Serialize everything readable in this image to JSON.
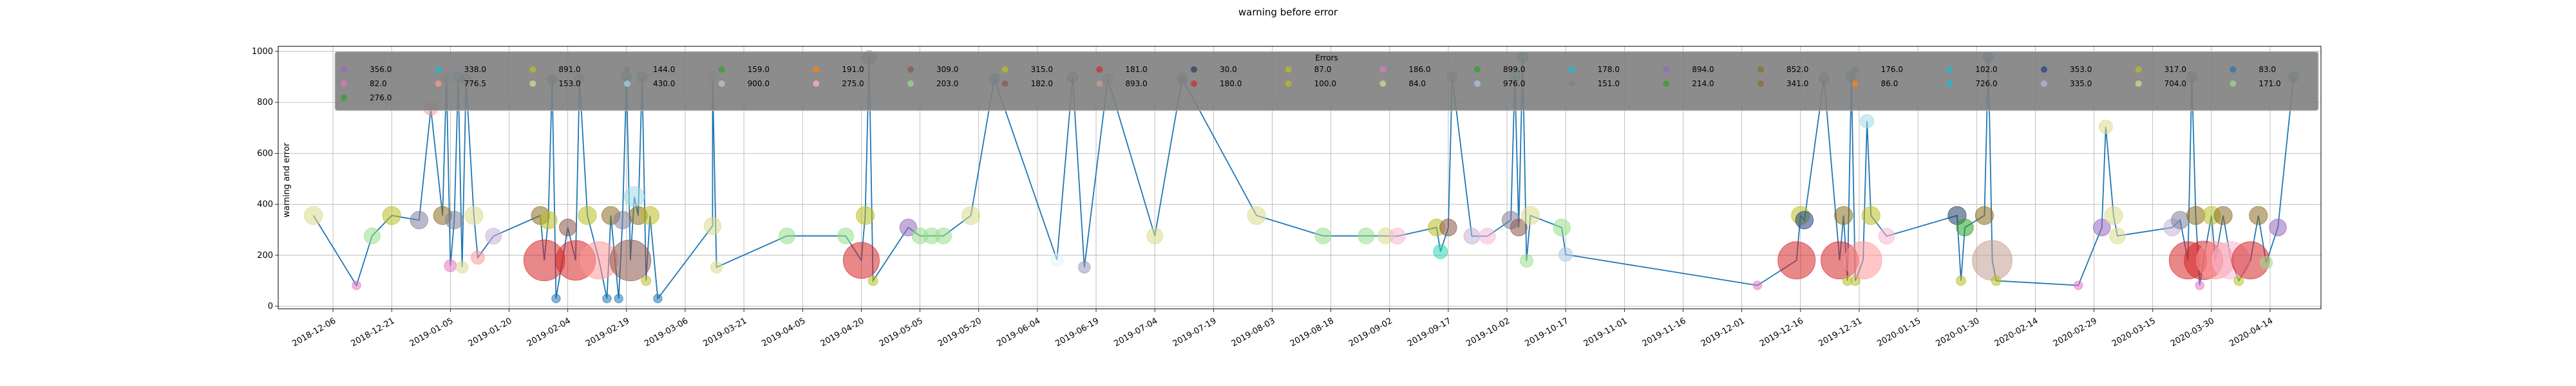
{
  "chart_data": {
    "type": "scatter",
    "title": "warning before error",
    "xlabel": "",
    "ylabel": "warning and error",
    "xlim": [
      "2018-11-22",
      "2020-04-27"
    ],
    "ylim": [
      -10,
      1020
    ],
    "grid": true,
    "y_ticks": [
      0,
      200,
      400,
      600,
      800,
      1000
    ],
    "x_ticks": [
      "2018-12-06",
      "2018-12-21",
      "2019-01-05",
      "2019-01-20",
      "2019-02-04",
      "2019-02-19",
      "2019-03-06",
      "2019-03-21",
      "2019-04-05",
      "2019-04-20",
      "2019-05-05",
      "2019-05-20",
      "2019-06-04",
      "2019-06-19",
      "2019-07-04",
      "2019-07-19",
      "2019-08-03",
      "2019-08-18",
      "2019-09-02",
      "2019-09-17",
      "2019-10-02",
      "2019-10-17",
      "2019-11-01",
      "2019-11-16",
      "2019-12-01",
      "2019-12-16",
      "2019-12-31",
      "2020-01-15",
      "2020-01-30",
      "2020-02-14",
      "2020-02-29",
      "2020-03-15",
      "2020-03-30",
      "2020-04-14"
    ],
    "line_color": "#1f77b4",
    "legend": {
      "title": "Errors",
      "placement": "upper-center",
      "entries": [
        {
          "label": "356.0",
          "color": "#9467bd"
        },
        {
          "label": "338.0",
          "color": "#17becf"
        },
        {
          "label": "891.0",
          "color": "#bcbd22"
        },
        {
          "label": "144.0",
          "color": "#7f7f7f"
        },
        {
          "label": "159.0",
          "color": "#2ca02c"
        },
        {
          "label": "191.0",
          "color": "#ff7f0e"
        },
        {
          "label": "309.0",
          "color": "#8c564b"
        },
        {
          "label": "315.0",
          "color": "#bcbd22"
        },
        {
          "label": "181.0",
          "color": "#d62728"
        },
        {
          "label": "30.0",
          "color": "#1f3f5f"
        },
        {
          "label": "87.0",
          "color": "#bcbd22"
        },
        {
          "label": "186.0",
          "color": "#e377c2"
        },
        {
          "label": "899.0",
          "color": "#2ca02c"
        },
        {
          "label": "178.0",
          "color": "#17becf"
        },
        {
          "label": "894.0",
          "color": "#9467bd"
        },
        {
          "label": "852.0",
          "color": "#8c6d1f"
        },
        {
          "label": "176.0",
          "color": "#7f7f7f"
        },
        {
          "label": "102.0",
          "color": "#17becf"
        },
        {
          "label": "353.0",
          "color": "#1f3f7f"
        },
        {
          "label": "317.0",
          "color": "#bcbd22"
        },
        {
          "label": "83.0",
          "color": "#1f77b4"
        },
        {
          "label": "82.0",
          "color": "#e377c2"
        },
        {
          "label": "776.5",
          "color": "#ff9896"
        },
        {
          "label": "153.0",
          "color": "#dbdb8d"
        },
        {
          "label": "430.0",
          "color": "#9edae5"
        },
        {
          "label": "900.0",
          "color": "#c7c7c7"
        },
        {
          "label": "275.0",
          "color": "#f7b6d2"
        },
        {
          "label": "203.0",
          "color": "#98df8a"
        },
        {
          "label": "182.0",
          "color": "#8c564b"
        },
        {
          "label": "893.0",
          "color": "#c49c94"
        },
        {
          "label": "180.0",
          "color": "#d62728"
        },
        {
          "label": "100.0",
          "color": "#bcbd22"
        },
        {
          "label": "84.0",
          "color": "#dbdb8d"
        },
        {
          "label": "976.0",
          "color": "#aec7e8"
        },
        {
          "label": "151.0",
          "color": "#7f7f7f"
        },
        {
          "label": "214.0",
          "color": "#2ca02c"
        },
        {
          "label": "341.0",
          "color": "#8c6d31"
        },
        {
          "label": "86.0",
          "color": "#ff7f0e"
        },
        {
          "label": "726.0",
          "color": "#17becf"
        },
        {
          "label": "335.0",
          "color": "#c5b0d5"
        },
        {
          "label": "704.0",
          "color": "#dbdb8d"
        },
        {
          "label": "171.0",
          "color": "#98df8a"
        },
        {
          "label": "276.0",
          "color": "#2ca02c"
        }
      ]
    },
    "series": [
      {
        "x": "2018-12-01",
        "y": 356,
        "size": 356,
        "color": "#dbdb8d"
      },
      {
        "x": "2018-12-12",
        "y": 82,
        "size": 82,
        "color": "#e377c2"
      },
      {
        "x": "2018-12-16",
        "y": 276,
        "size": 276,
        "color": "#98df8a"
      },
      {
        "x": "2018-12-21",
        "y": 356,
        "size": 356,
        "color": "#bcbd22"
      },
      {
        "x": "2018-12-28",
        "y": 338,
        "size": 338,
        "color": "#7f7f9f"
      },
      {
        "x": "2018-12-31",
        "y": 776,
        "size": 200,
        "color": "#ff9896"
      },
      {
        "x": "2019-01-03",
        "y": 356,
        "size": 356,
        "color": "#8c6d1f"
      },
      {
        "x": "2019-01-04",
        "y": 900,
        "size": 120,
        "color": "#c5b0d5"
      },
      {
        "x": "2019-01-05",
        "y": 159,
        "size": 159,
        "color": "#e377c2"
      },
      {
        "x": "2019-01-06",
        "y": 338,
        "size": 338,
        "color": "#7f7f9f"
      },
      {
        "x": "2019-01-07",
        "y": 900,
        "size": 120,
        "color": "#17becf"
      },
      {
        "x": "2019-01-08",
        "y": 153,
        "size": 153,
        "color": "#dbdb8d"
      },
      {
        "x": "2019-01-09",
        "y": 891,
        "size": 120,
        "color": "#1f77b4"
      },
      {
        "x": "2019-01-11",
        "y": 356,
        "size": 356,
        "color": "#dbdb8d"
      },
      {
        "x": "2019-01-12",
        "y": 191,
        "size": 191,
        "color": "#ff9896"
      },
      {
        "x": "2019-01-16",
        "y": 275,
        "size": 275,
        "color": "#c5b0d5"
      },
      {
        "x": "2019-01-28",
        "y": 356,
        "size": 356,
        "color": "#8c6d1f"
      },
      {
        "x": "2019-01-29",
        "y": 180,
        "size": 1800,
        "color": "#d62728"
      },
      {
        "x": "2019-01-30",
        "y": 338,
        "size": 338,
        "color": "#bcbd22"
      },
      {
        "x": "2019-01-31",
        "y": 891,
        "size": 100,
        "color": "#1f77b4"
      },
      {
        "x": "2019-02-01",
        "y": 30,
        "size": 80,
        "color": "#1f77b4"
      },
      {
        "x": "2019-02-04",
        "y": 309,
        "size": 309,
        "color": "#8c564b"
      },
      {
        "x": "2019-02-06",
        "y": 180,
        "size": 1700,
        "color": "#d62728"
      },
      {
        "x": "2019-02-07",
        "y": 894,
        "size": 100,
        "color": "#2ca02c"
      },
      {
        "x": "2019-02-09",
        "y": 356,
        "size": 356,
        "color": "#bcbd22"
      },
      {
        "x": "2019-02-12",
        "y": 180,
        "size": 1500,
        "color": "#ff9896"
      },
      {
        "x": "2019-02-14",
        "y": 30,
        "size": 80,
        "color": "#1f77b4"
      },
      {
        "x": "2019-02-15",
        "y": 356,
        "size": 356,
        "color": "#8c6d1f"
      },
      {
        "x": "2019-02-17",
        "y": 30,
        "size": 80,
        "color": "#1f77b4"
      },
      {
        "x": "2019-02-18",
        "y": 338,
        "size": 338,
        "color": "#7f7f9f"
      },
      {
        "x": "2019-02-19",
        "y": 900,
        "size": 120,
        "color": "#2ca02c"
      },
      {
        "x": "2019-02-20",
        "y": 180,
        "size": 1800,
        "color": "#8c564b"
      },
      {
        "x": "2019-02-21",
        "y": 430,
        "size": 430,
        "color": "#9edae5"
      },
      {
        "x": "2019-02-22",
        "y": 356,
        "size": 356,
        "color": "#8c6d1f"
      },
      {
        "x": "2019-02-23",
        "y": 900,
        "size": 120,
        "color": "#2ca02c"
      },
      {
        "x": "2019-02-24",
        "y": 100,
        "size": 100,
        "color": "#bcbd22"
      },
      {
        "x": "2019-02-25",
        "y": 356,
        "size": 356,
        "color": "#bcbd22"
      },
      {
        "x": "2019-02-27",
        "y": 30,
        "size": 80,
        "color": "#1f77b4"
      },
      {
        "x": "2019-03-13",
        "y": 315,
        "size": 315,
        "color": "#dbdb8d"
      },
      {
        "x": "2019-03-14",
        "y": 153,
        "size": 153,
        "color": "#dbdb8d"
      },
      {
        "x": "2019-03-13",
        "y": 900,
        "size": 120,
        "color": "#c7c7c7"
      },
      {
        "x": "2019-04-01",
        "y": 276,
        "size": 276,
        "color": "#98df8a"
      },
      {
        "x": "2019-04-16",
        "y": 276,
        "size": 276,
        "color": "#98df8a"
      },
      {
        "x": "2019-04-20",
        "y": 180,
        "size": 1400,
        "color": "#d62728"
      },
      {
        "x": "2019-04-21",
        "y": 356,
        "size": 356,
        "color": "#bcbd22"
      },
      {
        "x": "2019-04-22",
        "y": 976,
        "size": 200,
        "color": "#8c6d7f"
      },
      {
        "x": "2019-04-23",
        "y": 100,
        "size": 100,
        "color": "#bcbd22"
      },
      {
        "x": "2019-05-02",
        "y": 309,
        "size": 309,
        "color": "#9467bd"
      },
      {
        "x": "2019-05-05",
        "y": 276,
        "size": 276,
        "color": "#98df8a"
      },
      {
        "x": "2019-05-08",
        "y": 276,
        "size": 276,
        "color": "#98df8a"
      },
      {
        "x": "2019-05-11",
        "y": 276,
        "size": 276,
        "color": "#98df8a"
      },
      {
        "x": "2019-05-18",
        "y": 356,
        "size": 356,
        "color": "#dbdb8d"
      },
      {
        "x": "2019-05-24",
        "y": 893,
        "size": 120,
        "color": "#1f77b4"
      },
      {
        "x": "2019-06-09",
        "y": 182,
        "size": 182,
        "color": "#e0f7f7"
      },
      {
        "x": "2019-06-13",
        "y": 899,
        "size": 120,
        "color": "#1f77b4"
      },
      {
        "x": "2019-06-16",
        "y": 153,
        "size": 153,
        "color": "#9499bd"
      },
      {
        "x": "2019-06-22",
        "y": 893,
        "size": 120,
        "color": "#c49c94"
      },
      {
        "x": "2019-07-04",
        "y": 276,
        "size": 276,
        "color": "#dbdb8d"
      },
      {
        "x": "2019-07-11",
        "y": 894,
        "size": 120,
        "color": "#1f77b4"
      },
      {
        "x": "2019-07-30",
        "y": 356,
        "size": 356,
        "color": "#dbdb8d"
      },
      {
        "x": "2019-08-16",
        "y": 276,
        "size": 276,
        "color": "#98df8a"
      },
      {
        "x": "2019-08-27",
        "y": 276,
        "size": 276,
        "color": "#98df8a"
      },
      {
        "x": "2019-09-01",
        "y": 276,
        "size": 276,
        "color": "#dbdb8d"
      },
      {
        "x": "2019-09-04",
        "y": 275,
        "size": 275,
        "color": "#f7b6d2"
      },
      {
        "x": "2019-09-14",
        "y": 309,
        "size": 309,
        "color": "#bcbd22"
      },
      {
        "x": "2019-09-15",
        "y": 214,
        "size": 214,
        "color": "#2cd6b0"
      },
      {
        "x": "2019-09-17",
        "y": 309,
        "size": 309,
        "color": "#8c564b"
      },
      {
        "x": "2019-09-18",
        "y": 900,
        "size": 120,
        "color": "#9467bd"
      },
      {
        "x": "2019-09-23",
        "y": 275,
        "size": 275,
        "color": "#c5b0d5"
      },
      {
        "x": "2019-09-27",
        "y": 275,
        "size": 275,
        "color": "#f7b6d2"
      },
      {
        "x": "2019-10-03",
        "y": 338,
        "size": 338,
        "color": "#7f7f9f"
      },
      {
        "x": "2019-10-04",
        "y": 900,
        "size": 120,
        "color": "#17becf"
      },
      {
        "x": "2019-10-05",
        "y": 309,
        "size": 309,
        "color": "#8c564b"
      },
      {
        "x": "2019-10-06",
        "y": 976,
        "size": 120,
        "color": "#1f77b4"
      },
      {
        "x": "2019-10-07",
        "y": 178,
        "size": 178,
        "color": "#98df8a"
      },
      {
        "x": "2019-10-08",
        "y": 356,
        "size": 356,
        "color": "#dbdb8d"
      },
      {
        "x": "2019-10-16",
        "y": 309,
        "size": 309,
        "color": "#98df8a"
      },
      {
        "x": "2019-10-17",
        "y": 203,
        "size": 203,
        "color": "#aec7e8"
      },
      {
        "x": "2019-12-05",
        "y": 82,
        "size": 82,
        "color": "#e377c2"
      },
      {
        "x": "2019-12-15",
        "y": 180,
        "size": 1500,
        "color": "#d62728"
      },
      {
        "x": "2019-12-16",
        "y": 356,
        "size": 356,
        "color": "#bcbd22"
      },
      {
        "x": "2019-12-17",
        "y": 338,
        "size": 338,
        "color": "#1f3f7f"
      },
      {
        "x": "2019-12-22",
        "y": 894,
        "size": 120,
        "color": "#1f77b4"
      },
      {
        "x": "2019-12-26",
        "y": 180,
        "size": 1500,
        "color": "#d62728"
      },
      {
        "x": "2019-12-27",
        "y": 356,
        "size": 356,
        "color": "#8c6d1f"
      },
      {
        "x": "2019-12-28",
        "y": 100,
        "size": 100,
        "color": "#bcbd22"
      },
      {
        "x": "2019-12-29",
        "y": 900,
        "size": 120,
        "color": "#1f77b4"
      },
      {
        "x": "2019-12-30",
        "y": 100,
        "size": 100,
        "color": "#bcbd22"
      },
      {
        "x": "2020-01-01",
        "y": 180,
        "size": 1500,
        "color": "#ff9896"
      },
      {
        "x": "2020-01-02",
        "y": 726,
        "size": 200,
        "color": "#9edae5"
      },
      {
        "x": "2020-01-03",
        "y": 356,
        "size": 356,
        "color": "#bcbd22"
      },
      {
        "x": "2020-01-07",
        "y": 275,
        "size": 275,
        "color": "#f7b6d2"
      },
      {
        "x": "2020-01-25",
        "y": 356,
        "size": 356,
        "color": "#1f3f5f"
      },
      {
        "x": "2020-01-26",
        "y": 100,
        "size": 100,
        "color": "#bcbd22"
      },
      {
        "x": "2020-01-27",
        "y": 309,
        "size": 309,
        "color": "#2ca02c"
      },
      {
        "x": "2020-02-01",
        "y": 356,
        "size": 356,
        "color": "#8c6d1f"
      },
      {
        "x": "2020-02-02",
        "y": 976,
        "size": 120,
        "color": "#1f77b4"
      },
      {
        "x": "2020-02-03",
        "y": 180,
        "size": 1700,
        "color": "#c49c94"
      },
      {
        "x": "2020-02-04",
        "y": 100,
        "size": 100,
        "color": "#bcbd22"
      },
      {
        "x": "2020-02-25",
        "y": 82,
        "size": 82,
        "color": "#e377c2"
      },
      {
        "x": "2020-03-02",
        "y": 309,
        "size": 309,
        "color": "#9467bd"
      },
      {
        "x": "2020-03-03",
        "y": 704,
        "size": 200,
        "color": "#dbdb8d"
      },
      {
        "x": "2020-03-05",
        "y": 356,
        "size": 356,
        "color": "#dbdb8d"
      },
      {
        "x": "2020-03-06",
        "y": 276,
        "size": 276,
        "color": "#dbdb8d"
      },
      {
        "x": "2020-03-20",
        "y": 309,
        "size": 309,
        "color": "#c5b0d5"
      },
      {
        "x": "2020-03-22",
        "y": 338,
        "size": 338,
        "color": "#7f7f9f"
      },
      {
        "x": "2020-03-24",
        "y": 180,
        "size": 1500,
        "color": "#d62728"
      },
      {
        "x": "2020-03-25",
        "y": 900,
        "size": 120,
        "color": "#1f77b4"
      },
      {
        "x": "2020-03-26",
        "y": 356,
        "size": 356,
        "color": "#8c6d1f"
      },
      {
        "x": "2020-03-27",
        "y": 82,
        "size": 82,
        "color": "#e377c2"
      },
      {
        "x": "2020-03-28",
        "y": 180,
        "size": 1600,
        "color": "#d62728"
      },
      {
        "x": "2020-03-30",
        "y": 356,
        "size": 356,
        "color": "#bcbd22"
      },
      {
        "x": "2020-03-31",
        "y": 180,
        "size": 1500,
        "color": "#ff9896"
      },
      {
        "x": "2020-04-02",
        "y": 356,
        "size": 356,
        "color": "#8c6d1f"
      },
      {
        "x": "2020-04-04",
        "y": 180,
        "size": 1500,
        "color": "#f7b6d2"
      },
      {
        "x": "2020-04-06",
        "y": 100,
        "size": 100,
        "color": "#bcbd22"
      },
      {
        "x": "2020-04-09",
        "y": 180,
        "size": 1500,
        "color": "#d62728"
      },
      {
        "x": "2020-04-11",
        "y": 356,
        "size": 356,
        "color": "#8c6d1f"
      },
      {
        "x": "2020-04-13",
        "y": 171,
        "size": 171,
        "color": "#98df8a"
      },
      {
        "x": "2020-04-16",
        "y": 309,
        "size": 309,
        "color": "#9467bd"
      },
      {
        "x": "2020-04-20",
        "y": 900,
        "size": 120,
        "color": "#1f77b4"
      }
    ]
  }
}
